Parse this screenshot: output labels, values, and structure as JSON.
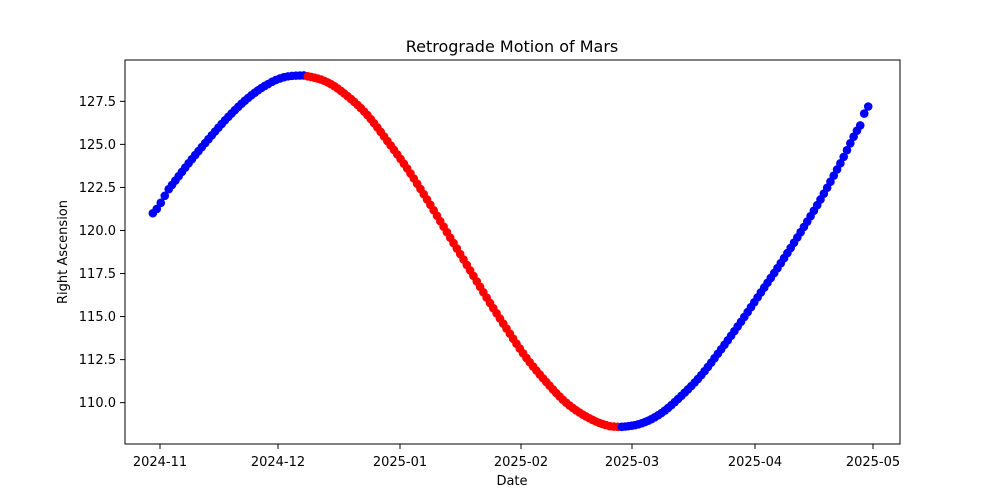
{
  "chart_data": {
    "type": "scatter",
    "title": "Retrograde Motion of Mars",
    "xlabel": "Date",
    "ylabel": "Right Ascension",
    "x_ticks": [
      "2024-11",
      "2024-12",
      "2025-01",
      "2025-02",
      "2025-03",
      "2025-04",
      "2025-05"
    ],
    "y_ticks": [
      "110.0",
      "112.5",
      "115.0",
      "117.5",
      "120.0",
      "122.5",
      "125.0",
      "127.5"
    ],
    "ylim": [
      107.6,
      129.9
    ],
    "grid": false,
    "marker": "circle",
    "colors": {
      "prograde": "#0000ff",
      "retrograde": "#ff0000"
    },
    "points": [
      {
        "date": "2024-11-01",
        "ra": 121.0,
        "status": "prograde"
      },
      {
        "date": "2024-11-05",
        "ra": 122.4,
        "status": "prograde"
      },
      {
        "date": "2024-11-10",
        "ra": 123.9,
        "status": "prograde"
      },
      {
        "date": "2024-11-15",
        "ra": 125.3,
        "status": "prograde"
      },
      {
        "date": "2024-11-20",
        "ra": 126.6,
        "status": "prograde"
      },
      {
        "date": "2024-11-25",
        "ra": 127.7,
        "status": "prograde"
      },
      {
        "date": "2024-11-30",
        "ra": 128.5,
        "status": "prograde"
      },
      {
        "date": "2024-12-04",
        "ra": 128.9,
        "status": "prograde"
      },
      {
        "date": "2024-12-08",
        "ra": 129.0,
        "status": "prograde"
      },
      {
        "date": "2024-12-10",
        "ra": 128.95,
        "status": "retrograde"
      },
      {
        "date": "2024-12-15",
        "ra": 128.6,
        "status": "retrograde"
      },
      {
        "date": "2024-12-20",
        "ra": 127.8,
        "status": "retrograde"
      },
      {
        "date": "2024-12-25",
        "ra": 126.7,
        "status": "retrograde"
      },
      {
        "date": "2024-12-30",
        "ra": 125.2,
        "status": "retrograde"
      },
      {
        "date": "2025-01-04",
        "ra": 123.6,
        "status": "retrograde"
      },
      {
        "date": "2025-01-09",
        "ra": 121.8,
        "status": "retrograde"
      },
      {
        "date": "2025-01-14",
        "ra": 119.9,
        "status": "retrograde"
      },
      {
        "date": "2025-01-19",
        "ra": 118.0,
        "status": "retrograde"
      },
      {
        "date": "2025-01-24",
        "ra": 116.1,
        "status": "retrograde"
      },
      {
        "date": "2025-01-29",
        "ra": 114.3,
        "status": "retrograde"
      },
      {
        "date": "2025-02-03",
        "ra": 112.6,
        "status": "retrograde"
      },
      {
        "date": "2025-02-08",
        "ra": 111.2,
        "status": "retrograde"
      },
      {
        "date": "2025-02-13",
        "ra": 110.0,
        "status": "retrograde"
      },
      {
        "date": "2025-02-18",
        "ra": 109.2,
        "status": "retrograde"
      },
      {
        "date": "2025-02-23",
        "ra": 108.7,
        "status": "retrograde"
      },
      {
        "date": "2025-02-26",
        "ra": 108.6,
        "status": "retrograde"
      },
      {
        "date": "2025-02-27",
        "ra": 108.6,
        "status": "prograde"
      },
      {
        "date": "2025-03-04",
        "ra": 108.8,
        "status": "prograde"
      },
      {
        "date": "2025-03-09",
        "ra": 109.4,
        "status": "prograde"
      },
      {
        "date": "2025-03-14",
        "ra": 110.4,
        "status": "prograde"
      },
      {
        "date": "2025-03-19",
        "ra": 111.6,
        "status": "prograde"
      },
      {
        "date": "2025-03-24",
        "ra": 113.1,
        "status": "prograde"
      },
      {
        "date": "2025-03-29",
        "ra": 114.7,
        "status": "prograde"
      },
      {
        "date": "2025-04-03",
        "ra": 116.4,
        "status": "prograde"
      },
      {
        "date": "2025-04-08",
        "ra": 118.1,
        "status": "prograde"
      },
      {
        "date": "2025-04-13",
        "ra": 119.9,
        "status": "prograde"
      },
      {
        "date": "2025-04-18",
        "ra": 121.8,
        "status": "prograde"
      },
      {
        "date": "2025-04-23",
        "ra": 123.9,
        "status": "prograde"
      },
      {
        "date": "2025-04-28",
        "ra": 126.1,
        "status": "prograde"
      },
      {
        "date": "2025-04-30",
        "ra": 127.2,
        "status": "prograde"
      }
    ]
  }
}
